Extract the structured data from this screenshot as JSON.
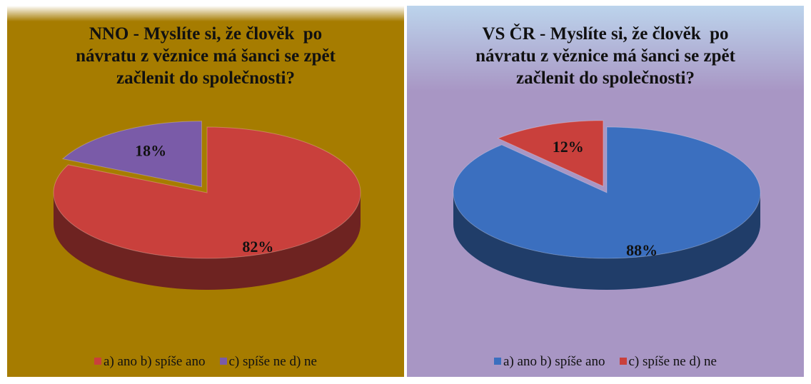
{
  "chart_data": [
    {
      "type": "pie",
      "title": "NNO - Myslíte si, že člověk  po návratu z věznice má šanci se zpět začlenit do společnosti?",
      "categories": [
        "a) ano b) spíše ano",
        "c) spíše ne d) ne"
      ],
      "values": [
        82,
        18
      ],
      "value_labels": [
        "82%",
        "18%"
      ],
      "colors": [
        "#c9403c",
        "#7a5ba8"
      ]
    },
    {
      "type": "pie",
      "title": "VS ČR - Myslíte si, že člověk  po návratu z věznice má šanci se zpět začlenit do společnosti?",
      "categories": [
        "a) ano b) spíše ano",
        "c) spíše ne d) ne"
      ],
      "values": [
        88,
        12
      ],
      "value_labels": [
        "88%",
        "12%"
      ],
      "colors": [
        "#3b6fbf",
        "#c9403c"
      ]
    }
  ]
}
